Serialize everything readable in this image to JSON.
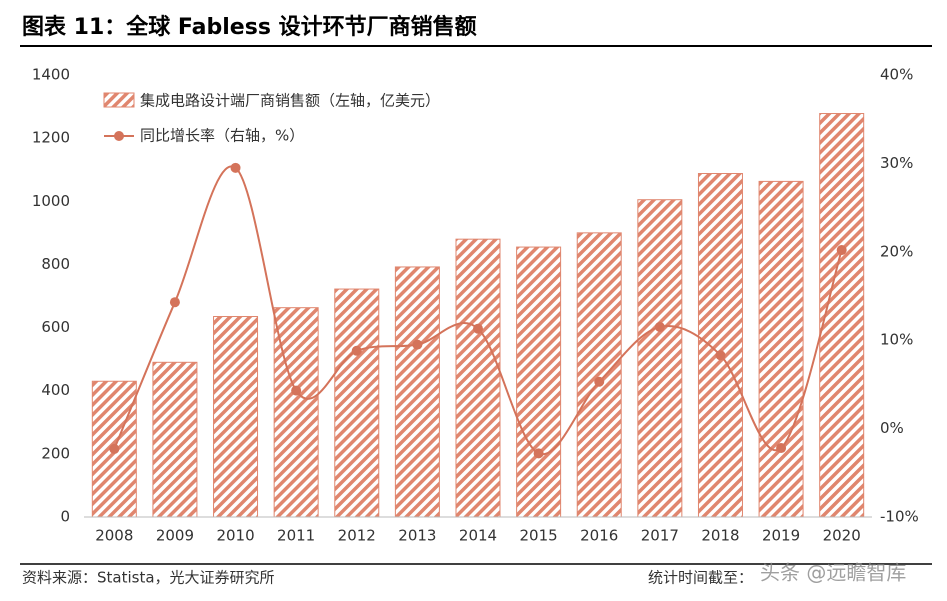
{
  "chart_data": {
    "type": "bar_line",
    "title": "图表 11：全球 Fabless 设计环节厂商销售额",
    "categories": [
      "2008",
      "2009",
      "2010",
      "2011",
      "2012",
      "2013",
      "2014",
      "2015",
      "2016",
      "2017",
      "2018",
      "2019",
      "2020"
    ],
    "series": [
      {
        "name": "集成电路设计端厂商销售额（左轴，亿美元）",
        "color": "#e0866e",
        "type": "bar",
        "values": [
          430,
          490,
          635,
          663,
          722,
          792,
          880,
          855,
          900,
          1005,
          1088,
          1063,
          1278
        ]
      },
      {
        "name": "同比增长率（右轴，%）",
        "color": "#d4735a",
        "type": "line",
        "axis": "y2",
        "values": [
          -2.3,
          14.3,
          29.5,
          4.3,
          8.8,
          9.5,
          11.3,
          -2.8,
          5.3,
          11.5,
          8.3,
          -2.2,
          20.2
        ]
      }
    ],
    "ylim": [
      0,
      1400
    ],
    "yticks": [
      0,
      200,
      400,
      600,
      800,
      1000,
      1200,
      1400
    ],
    "y2lim": [
      -10,
      40
    ],
    "y2ticks": [
      {
        "value": -10,
        "label": "-10%"
      },
      {
        "value": 0,
        "label": "0%"
      },
      {
        "value": 10,
        "label": "10%"
      },
      {
        "value": 20,
        "label": "20%"
      },
      {
        "value": 30,
        "label": "30%"
      },
      {
        "value": 40,
        "label": "40%"
      }
    ],
    "source": "资料来源：Statista，光大证券研究所",
    "note": "统计时间截至：",
    "watermark": "头条 @远瞻智库"
  }
}
